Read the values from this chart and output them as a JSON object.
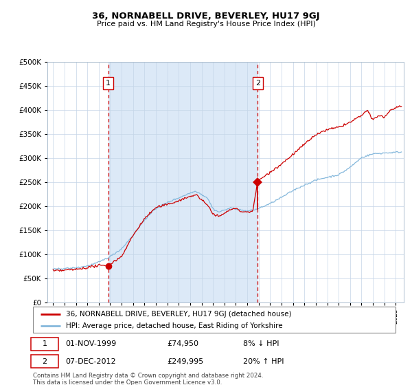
{
  "title": "36, NORNABELL DRIVE, BEVERLEY, HU17 9GJ",
  "subtitle": "Price paid vs. HM Land Registry's House Price Index (HPI)",
  "legend_line1": "36, NORNABELL DRIVE, BEVERLEY, HU17 9GJ (detached house)",
  "legend_line2": "HPI: Average price, detached house, East Riding of Yorkshire",
  "annotation1_date": "01-NOV-1999",
  "annotation1_price": "£74,950",
  "annotation1_hpi": "8% ↓ HPI",
  "annotation2_date": "07-DEC-2012",
  "annotation2_price": "£249,995",
  "annotation2_hpi": "20% ↑ HPI",
  "footnote": "Contains HM Land Registry data © Crown copyright and database right 2024.\nThis data is licensed under the Open Government Licence v3.0.",
  "bg_color": "#dce9f7",
  "line_color_red": "#cc0000",
  "line_color_blue": "#85b8dc",
  "sale1_x": 1999.83,
  "sale1_y": 74950,
  "sale2_x": 2012.92,
  "sale2_y": 249995,
  "ylim": [
    0,
    500000
  ],
  "xlim_start": 1994.5,
  "xlim_end": 2025.7
}
